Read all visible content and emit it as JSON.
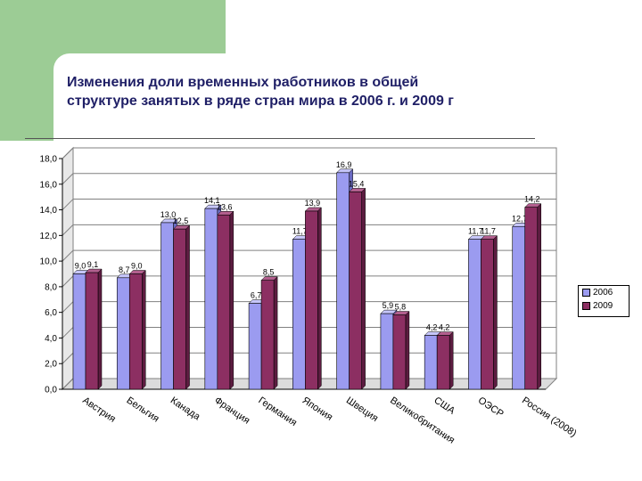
{
  "page": {
    "title_line1": "Изменения доли временных работников  в общей",
    "title_line2": "структуре занятых в ряде стран мира в 2006 г. и 2009 г"
  },
  "colors": {
    "series_2006": "#9b9bf0",
    "series_2009": "#8c2f62",
    "title": "#1f1f66",
    "accent_green": "#9ccc95"
  },
  "chart_data": {
    "type": "bar",
    "title": "",
    "xlabel": "",
    "ylabel": "",
    "ylim": [
      0,
      18
    ],
    "yticks": [
      "0,0",
      "2,0",
      "4,0",
      "6,0",
      "8,0",
      "10,0",
      "12,0",
      "14,0",
      "16,0",
      "18,0"
    ],
    "grid": true,
    "legend_position": "right",
    "categories": [
      "Австрия",
      "Бельгия",
      "Канада",
      "Франция",
      "Германия",
      "Япония",
      "Швеция",
      "Великобритания",
      "США",
      "ОЭСР",
      "Россия (2008)"
    ],
    "series": [
      {
        "name": "2006",
        "values": [
          9.0,
          8.7,
          13.0,
          14.1,
          6.7,
          11.7,
          16.9,
          5.9,
          4.2,
          11.7,
          12.7
        ]
      },
      {
        "name": "2009",
        "values": [
          9.1,
          9.0,
          12.5,
          13.6,
          8.5,
          13.9,
          15.4,
          5.8,
          4.2,
          11.7,
          14.2
        ]
      }
    ],
    "data_labels": [
      [
        "9,0",
        "8,7",
        "13,0",
        "14,1",
        "6,7",
        "11,7",
        "16,9",
        "5,9",
        "4,2",
        "11,7",
        "12,7"
      ],
      [
        "9,1",
        "9,0",
        "12,5",
        "13,6",
        "8,5",
        "13,9",
        "15,4",
        "5,8",
        "4,2",
        "11,7",
        "14,2"
      ]
    ]
  }
}
